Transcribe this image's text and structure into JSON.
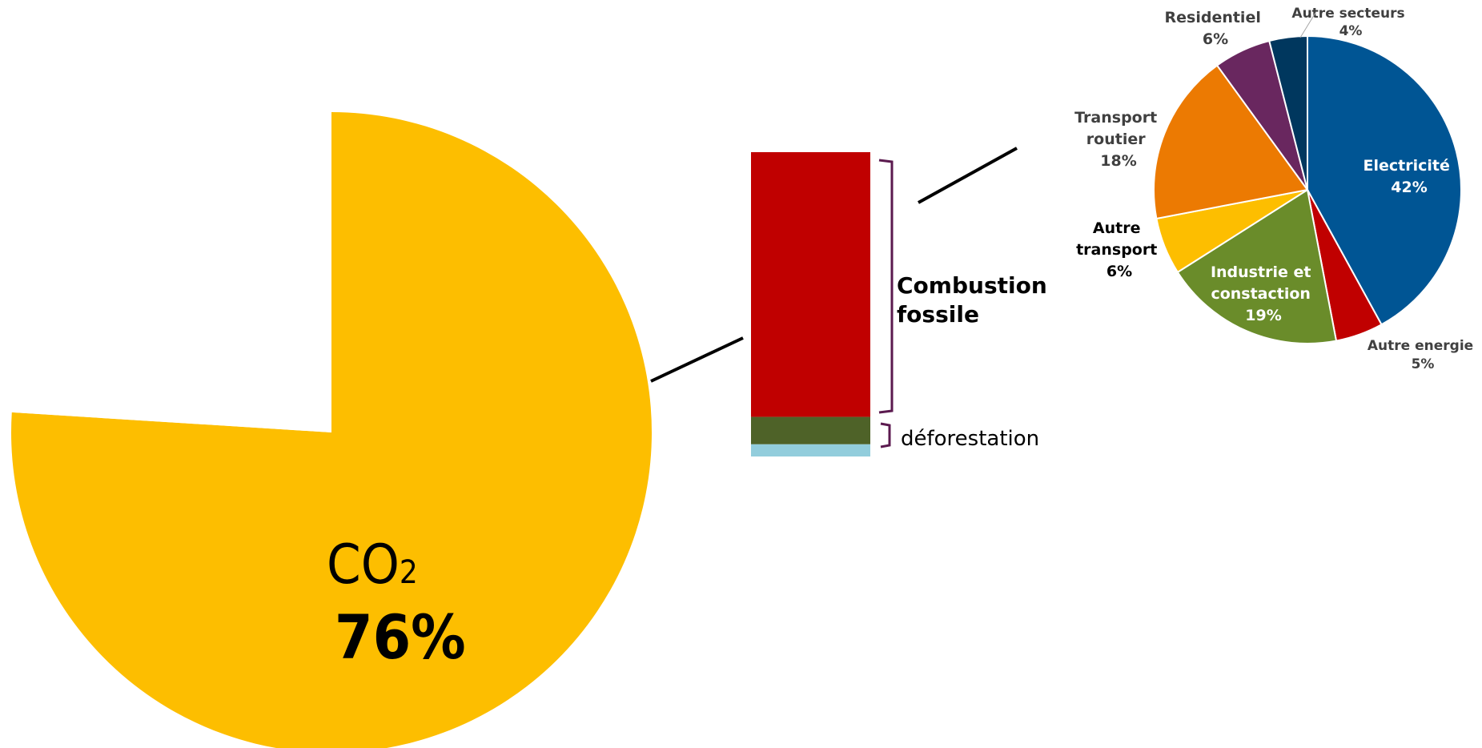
{
  "chart_data": [
    {
      "type": "pie",
      "slices": [
        {
          "label": "CO2",
          "value": 76,
          "display_value": "76%",
          "color": "#FDBE00"
        },
        {
          "label": "",
          "value": 24,
          "color": "#FFFFFF"
        }
      ],
      "label_main": "CO",
      "label_sub": "2",
      "label_value": "76%"
    },
    {
      "type": "bar",
      "stacked": true,
      "segments": [
        {
          "label": "Combustion fossile",
          "value": 87,
          "color": "#C00000"
        },
        {
          "label": "déforestation",
          "value": 9,
          "color": "#4E6228"
        },
        {
          "label": "",
          "value": 4,
          "color": "#92CDDC"
        }
      ],
      "bracket_labels": [
        "Combustion",
        "fossile",
        "déforestation"
      ],
      "bracket_color": "#5B1A4F"
    },
    {
      "type": "pie",
      "slices": [
        {
          "label": "Electricité",
          "value": 42,
          "display": "42%",
          "color": "#005594",
          "label_color": "#FFFFFF"
        },
        {
          "label": "Autre energie",
          "value": 5,
          "display": "5%",
          "color": "#C00000",
          "label_color": "#404040"
        },
        {
          "label": "Industrie et constaction",
          "value": 19,
          "display": "19%",
          "color": "#6A8C2A",
          "label_color": "#FFFFFF"
        },
        {
          "label": "Autre transport",
          "value": 6,
          "display": "6%",
          "color": "#FDBE00",
          "label_color": "#000000"
        },
        {
          "label": "Transport routier",
          "value": 18,
          "display": "18%",
          "color": "#EC7A02",
          "label_color": "#404040"
        },
        {
          "label": "Residentiel",
          "value": 6,
          "display": "6%",
          "color": "#69275F",
          "label_color": "#404040"
        },
        {
          "label": "Autre secteurs",
          "value": 4,
          "display": "4%",
          "color": "#00375E",
          "label_color": "#404040"
        }
      ]
    }
  ]
}
